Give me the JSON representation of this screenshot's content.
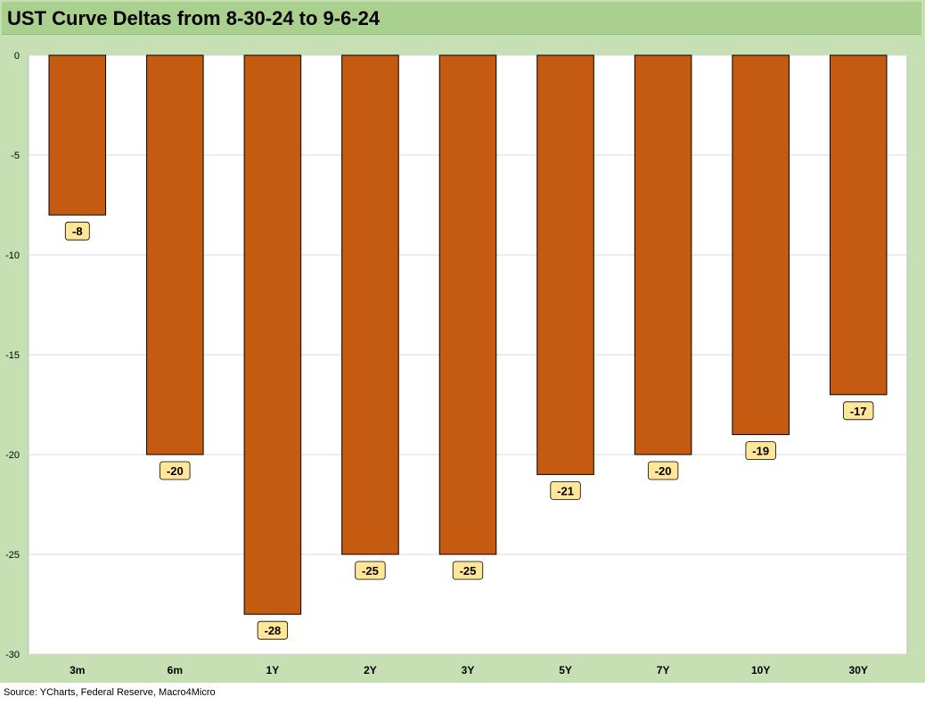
{
  "chart_data": {
    "type": "bar",
    "title": "UST Curve Deltas from 8-30-24 to 9-6-24",
    "categories": [
      "3m",
      "6m",
      "1Y",
      "2Y",
      "3Y",
      "5Y",
      "7Y",
      "10Y",
      "30Y"
    ],
    "values": [
      -8,
      -20,
      -28,
      -25,
      -25,
      -21,
      -20,
      -19,
      -17
    ],
    "data_labels": [
      "-8",
      "-20",
      "-28",
      "-25",
      "-25",
      "-21",
      "-20",
      "-19",
      "-17"
    ],
    "ylim": [
      -30,
      0
    ],
    "yticks": [
      0,
      -5,
      -10,
      -15,
      -20,
      -25,
      -30
    ],
    "ytick_labels": [
      "0",
      "-5",
      "-10",
      "-15",
      "-20",
      "-25",
      "-30"
    ],
    "xlabel": "",
    "ylabel": "",
    "grid": true,
    "legend": "none",
    "colors": {
      "bar": "#c55a11",
      "label_fill": "#ffe699",
      "frame": "#c6e0b4",
      "title_bar": "#a9d08e",
      "gridline": "#d9d9d9"
    },
    "source": "Source: YCharts, Federal Reserve, Macro4Micro"
  }
}
